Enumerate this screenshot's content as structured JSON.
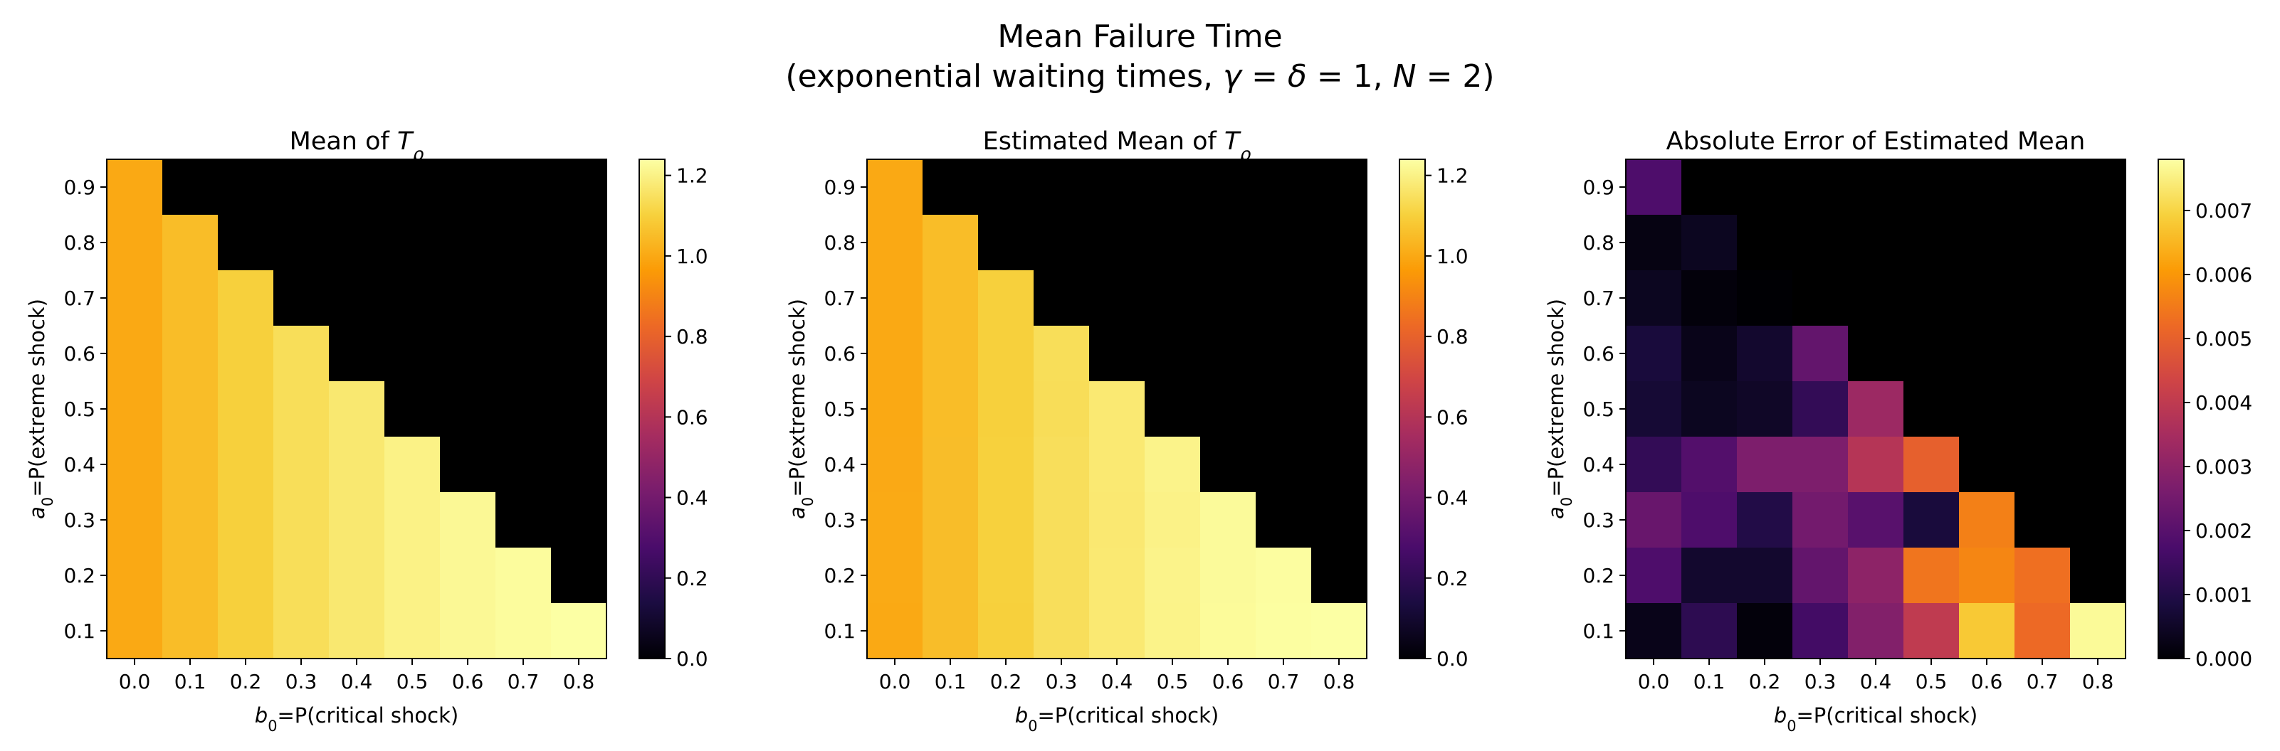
{
  "figure": {
    "title_line1": "Mean Failure Time",
    "title_line2": "(exponential waiting times, γ = δ = 1, N = 2)",
    "colormap": "inferno",
    "colormap_stops": [
      "#000004",
      "#1b0c41",
      "#4a0c6b",
      "#781c6d",
      "#a52c60",
      "#cf4446",
      "#ed6925",
      "#fb9b06",
      "#f7d13d",
      "#fcffa4"
    ],
    "empty_cell_color": "#000000"
  },
  "chart_data": [
    {
      "type": "heatmap",
      "title": "Mean of T_ρ",
      "xlabel": "b_0=P(critical shock)",
      "ylabel": "a_0=P(extreme shock)",
      "x_categories": [
        "0.0",
        "0.1",
        "0.2",
        "0.3",
        "0.4",
        "0.5",
        "0.6",
        "0.7",
        "0.8"
      ],
      "y_categories": [
        "0.9",
        "0.8",
        "0.7",
        "0.6",
        "0.5",
        "0.4",
        "0.3",
        "0.2",
        "0.1"
      ],
      "values": [
        [
          1.0,
          null,
          null,
          null,
          null,
          null,
          null,
          null,
          null
        ],
        [
          1.0,
          1.05,
          null,
          null,
          null,
          null,
          null,
          null,
          null
        ],
        [
          1.0,
          1.05,
          1.1,
          null,
          null,
          null,
          null,
          null,
          null
        ],
        [
          1.0,
          1.05,
          1.1,
          1.14,
          null,
          null,
          null,
          null,
          null
        ],
        [
          1.0,
          1.05,
          1.1,
          1.14,
          1.17,
          null,
          null,
          null,
          null
        ],
        [
          1.0,
          1.05,
          1.1,
          1.14,
          1.17,
          1.2,
          null,
          null,
          null
        ],
        [
          1.0,
          1.05,
          1.1,
          1.14,
          1.17,
          1.2,
          1.22,
          null,
          null
        ],
        [
          1.0,
          1.05,
          1.1,
          1.14,
          1.17,
          1.2,
          1.22,
          1.23,
          null
        ],
        [
          1.0,
          1.05,
          1.1,
          1.14,
          1.17,
          1.2,
          1.22,
          1.23,
          1.24
        ]
      ],
      "vmin": 0.0,
      "vmax": 1.24,
      "colorbar_ticks": [
        "0.0",
        "0.2",
        "0.4",
        "0.6",
        "0.8",
        "1.0",
        "1.2"
      ]
    },
    {
      "type": "heatmap",
      "title": "Estimated Mean of T_ρ",
      "xlabel": "b_0=P(critical shock)",
      "ylabel": "a_0=P(extreme shock)",
      "x_categories": [
        "0.0",
        "0.1",
        "0.2",
        "0.3",
        "0.4",
        "0.5",
        "0.6",
        "0.7",
        "0.8"
      ],
      "y_categories": [
        "0.9",
        "0.8",
        "0.7",
        "0.6",
        "0.5",
        "0.4",
        "0.3",
        "0.2",
        "0.1"
      ],
      "values": [
        [
          1.0,
          null,
          null,
          null,
          null,
          null,
          null,
          null,
          null
        ],
        [
          1.0,
          1.05,
          null,
          null,
          null,
          null,
          null,
          null,
          null
        ],
        [
          1.0,
          1.05,
          1.1,
          null,
          null,
          null,
          null,
          null,
          null
        ],
        [
          0.999,
          1.05,
          1.1,
          1.14,
          null,
          null,
          null,
          null,
          null
        ],
        [
          0.999,
          1.05,
          1.1,
          1.139,
          1.173,
          null,
          null,
          null,
          null
        ],
        [
          1.001,
          1.051,
          1.102,
          1.142,
          1.173,
          1.205,
          null,
          null,
          null
        ],
        [
          1.002,
          1.052,
          1.101,
          1.142,
          1.172,
          1.201,
          1.226,
          null,
          null
        ],
        [
          1.002,
          1.051,
          1.101,
          1.142,
          1.173,
          1.205,
          1.226,
          1.235,
          null
        ],
        [
          1.0,
          1.052,
          1.1,
          1.142,
          1.173,
          1.204,
          1.227,
          1.236,
          1.248
        ]
      ],
      "vmin": 0.0,
      "vmax": 1.24,
      "colorbar_ticks": [
        "0.0",
        "0.2",
        "0.4",
        "0.6",
        "0.8",
        "1.0",
        "1.2"
      ]
    },
    {
      "type": "heatmap",
      "title": "Absolute Error of Estimated Mean",
      "xlabel": "b_0=P(critical shock)",
      "ylabel": "a_0=P(extreme shock)",
      "x_categories": [
        "0.0",
        "0.1",
        "0.2",
        "0.3",
        "0.4",
        "0.5",
        "0.6",
        "0.7",
        "0.8"
      ],
      "y_categories": [
        "0.9",
        "0.8",
        "0.7",
        "0.6",
        "0.5",
        "0.4",
        "0.3",
        "0.2",
        "0.1"
      ],
      "values": [
        [
          0.0018,
          null,
          null,
          null,
          null,
          null,
          null,
          null,
          null
        ],
        [
          0.0002,
          0.0004,
          null,
          null,
          null,
          null,
          null,
          null,
          null
        ],
        [
          0.0004,
          0.0001,
          0.0,
          null,
          null,
          null,
          null,
          null,
          null
        ],
        [
          0.0008,
          0.0003,
          0.0006,
          0.0022,
          null,
          null,
          null,
          null,
          null
        ],
        [
          0.0007,
          0.0004,
          0.0005,
          0.0013,
          0.0033,
          null,
          null,
          null,
          null
        ],
        [
          0.0013,
          0.0019,
          0.0027,
          0.0027,
          0.0038,
          0.005,
          null,
          null,
          null
        ],
        [
          0.0023,
          0.0018,
          0.001,
          0.0025,
          0.002,
          0.0008,
          0.0056,
          null,
          null
        ],
        [
          0.0018,
          0.0006,
          0.0006,
          0.0022,
          0.003,
          0.0054,
          0.0057,
          0.0053,
          null
        ],
        [
          0.0003,
          0.0012,
          0.0001,
          0.0016,
          0.0028,
          0.004,
          0.0068,
          0.0052,
          0.0077
        ]
      ],
      "vmin": 0.0,
      "vmax": 0.0078,
      "colorbar_ticks": [
        "0.000",
        "0.001",
        "0.002",
        "0.003",
        "0.004",
        "0.005",
        "0.006",
        "0.007"
      ]
    }
  ]
}
